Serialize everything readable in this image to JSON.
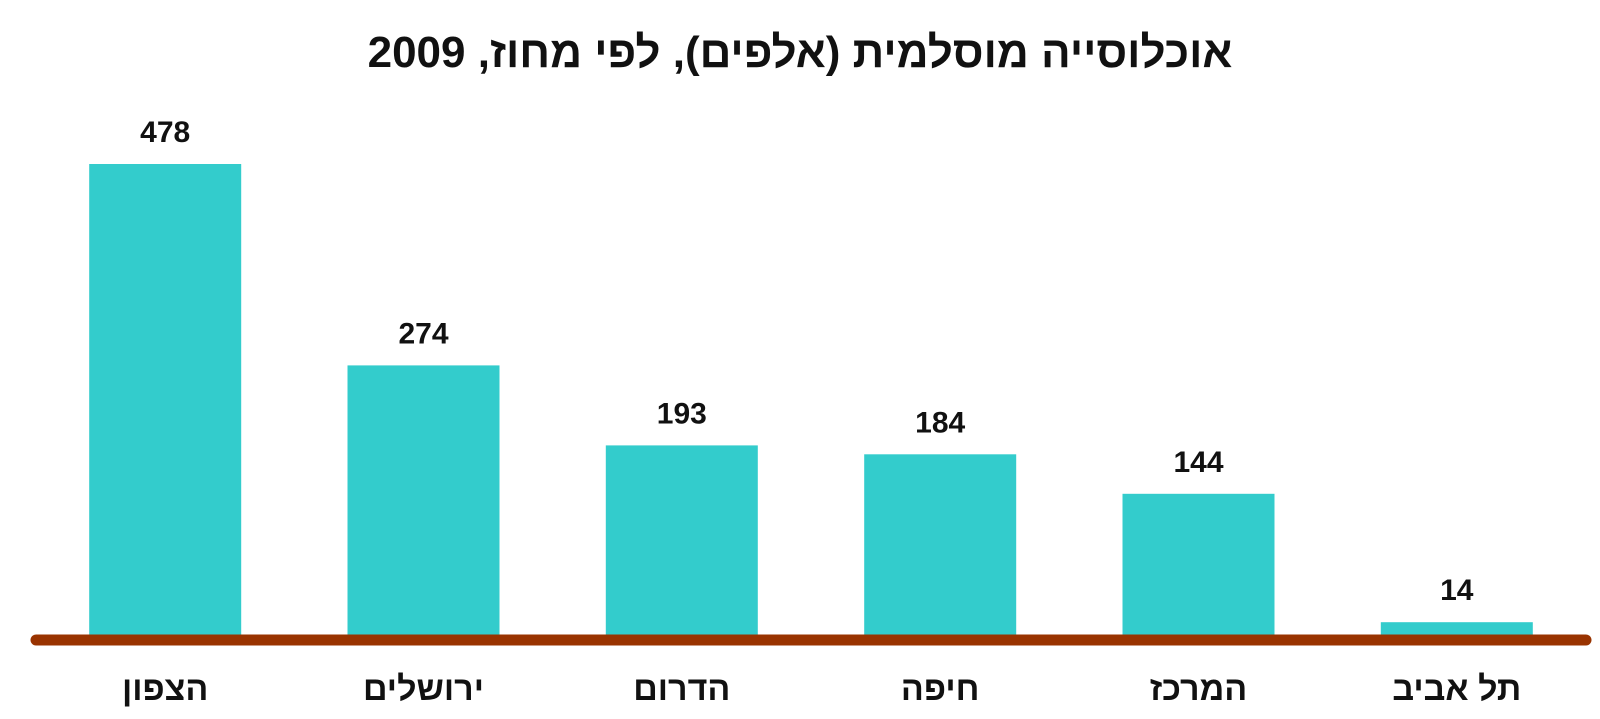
{
  "chart_data": {
    "type": "bar",
    "title": "אוכלוסייה מוסלמית (אלפים), לפי מחוז, 2009",
    "categories": [
      "הצפון",
      "ירושלים",
      "הדרום",
      "חיפה",
      "המרכז",
      "תל אביב"
    ],
    "values": [
      478,
      274,
      193,
      184,
      144,
      14
    ],
    "data_labels": [
      "478",
      "274",
      "193",
      "184",
      "144",
      "14"
    ],
    "xlabel": "",
    "ylabel": "",
    "ylim": [
      0,
      478
    ],
    "grid": false,
    "legend": "none",
    "bar_color": "#33CCCC",
    "baseline_color": "#993300"
  }
}
